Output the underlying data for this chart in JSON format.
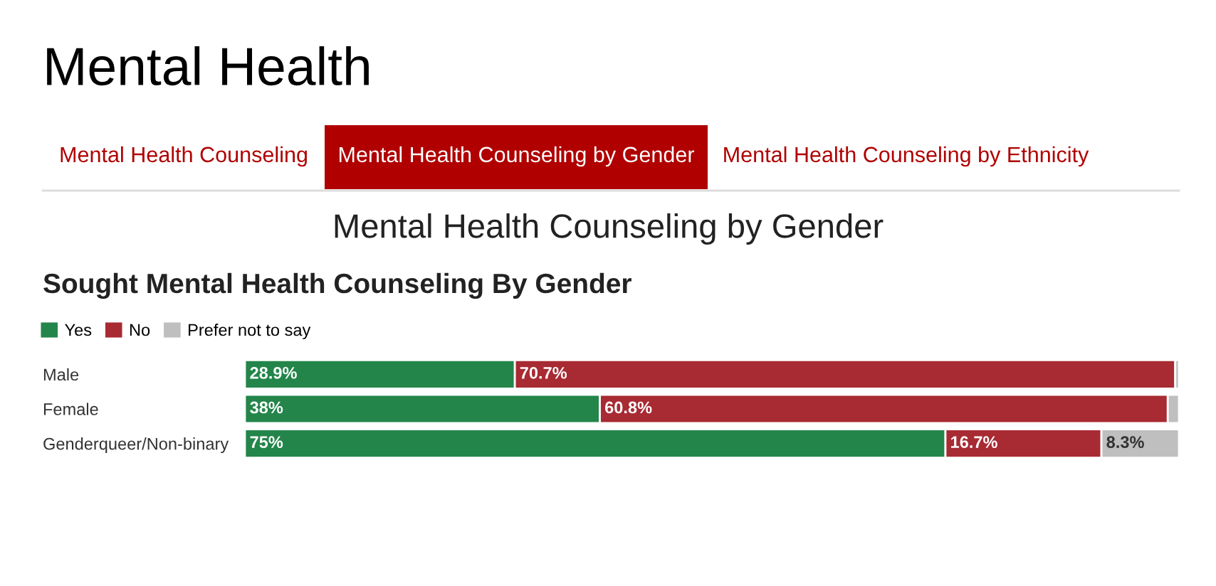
{
  "chart_data": {
    "type": "bar",
    "orientation": "horizontal",
    "stacked": true,
    "title": "Mental Health",
    "subtitle": "Sought Mental Health Counseling By Gender",
    "annotations": [
      "Mental Health Counseling",
      "Mental Health Counseling by Gender",
      "Mental Health Counseling by Ethnicity",
      "Mental Health Counseling by Gender"
    ],
    "categories": [
      "Male",
      "Female",
      "Genderqueer/Non-binary"
    ],
    "series": [
      {
        "name": "Yes",
        "color": "#23854a",
        "values": [
          28.9,
          38,
          75
        ],
        "value_labels": [
          "28.9%",
          "38%",
          "75%"
        ]
      },
      {
        "name": "No",
        "color": "#a82a33",
        "values": [
          70.7,
          60.8,
          16.7
        ],
        "value_labels": [
          "70.7%",
          "60.8%",
          "16.7%"
        ]
      },
      {
        "name": "Prefer not to say",
        "color": "#bfbfbf",
        "values": [
          0.4,
          1.2,
          8.3
        ],
        "value_labels": [
          null,
          null,
          "8.3%"
        ]
      }
    ],
    "xlim": [
      0,
      100
    ],
    "tick_labels": "y",
    "grid": false,
    "legend": "top left"
  }
}
